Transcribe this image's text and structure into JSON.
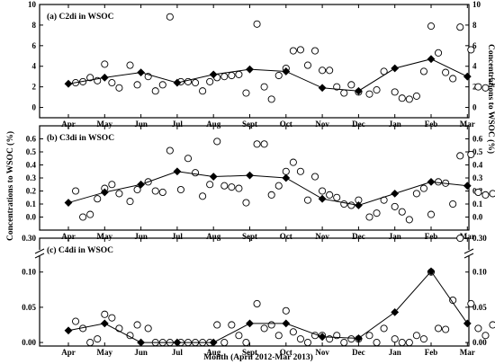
{
  "chart_data": {
    "type": "scatter",
    "xlabel": "Month (April 2012-Mar 2013)",
    "ylabel_left": "Concentrations to WSOC (%)",
    "ylabel_right": "Concentrations to WSOC (%)",
    "categories": [
      "Apr",
      "May",
      "Jun",
      "Jul",
      "Aug",
      "Sept",
      "Oct",
      "Nov",
      "Dec",
      "Jan",
      "Feb",
      "Mar"
    ],
    "panels": [
      {
        "title": "(a)  C2di in WSOC",
        "ylim": [
          -1,
          10
        ],
        "yticks": [
          0,
          2,
          4,
          6,
          8,
          10
        ],
        "monthly_mean": [
          2.3,
          2.9,
          3.4,
          2.4,
          3.2,
          3.7,
          3.5,
          1.9,
          1.6,
          3.8,
          4.7,
          3.0
        ],
        "samples": [
          [
            0.2,
            2.4
          ],
          [
            0.4,
            2.5
          ],
          [
            0.6,
            2.9
          ],
          [
            0.8,
            2.6
          ],
          [
            1.0,
            4.2
          ],
          [
            1.2,
            2.4
          ],
          [
            1.4,
            1.9
          ],
          [
            1.7,
            4.1
          ],
          [
            1.9,
            2.2
          ],
          [
            2.2,
            3.0
          ],
          [
            2.4,
            1.6
          ],
          [
            2.6,
            2.2
          ],
          [
            2.8,
            8.8
          ],
          [
            3.1,
            2.5
          ],
          [
            3.3,
            2.5
          ],
          [
            3.5,
            2.4
          ],
          [
            3.7,
            1.6
          ],
          [
            3.9,
            2.5
          ],
          [
            4.1,
            2.9
          ],
          [
            4.3,
            3.0
          ],
          [
            4.5,
            3.1
          ],
          [
            4.7,
            3.2
          ],
          [
            4.9,
            1.4
          ],
          [
            5.2,
            8.1
          ],
          [
            5.4,
            2.0
          ],
          [
            5.6,
            0.8
          ],
          [
            5.8,
            3.1
          ],
          [
            6.0,
            3.8
          ],
          [
            6.2,
            5.5
          ],
          [
            6.4,
            5.6
          ],
          [
            6.6,
            4.1
          ],
          [
            6.8,
            5.5
          ],
          [
            7.0,
            3.6
          ],
          [
            7.2,
            3.6
          ],
          [
            7.4,
            2.0
          ],
          [
            7.6,
            1.4
          ],
          [
            7.8,
            2.2
          ],
          [
            8.0,
            1.5
          ],
          [
            8.3,
            1.3
          ],
          [
            8.5,
            1.7
          ],
          [
            8.7,
            3.5
          ],
          [
            9.0,
            1.5
          ],
          [
            9.2,
            0.9
          ],
          [
            9.4,
            0.8
          ],
          [
            9.6,
            1.1
          ],
          [
            9.8,
            3.5
          ],
          [
            10.0,
            7.9
          ],
          [
            10.2,
            5.3
          ],
          [
            10.4,
            3.4
          ],
          [
            10.6,
            2.8
          ],
          [
            10.8,
            7.8
          ],
          [
            11.1,
            5.6
          ],
          [
            11.3,
            2.0
          ],
          [
            11.5,
            1.9
          ],
          [
            11.7,
            2.5
          ],
          [
            11.9,
            3.9
          ]
        ]
      },
      {
        "title": "(b)  C3di in WSOC",
        "ylim": [
          -0.1,
          0.7
        ],
        "yticks": [
          0.0,
          0.1,
          0.2,
          0.3,
          0.4,
          0.5,
          0.6
        ],
        "monthly_mean": [
          0.11,
          0.19,
          0.25,
          0.35,
          0.31,
          0.32,
          0.3,
          0.14,
          0.09,
          0.18,
          0.27,
          0.24
        ],
        "samples": [
          [
            0.2,
            0.2
          ],
          [
            0.4,
            0.0
          ],
          [
            0.6,
            0.02
          ],
          [
            0.8,
            0.14
          ],
          [
            1.0,
            0.22
          ],
          [
            1.2,
            0.25
          ],
          [
            1.4,
            0.18
          ],
          [
            1.7,
            0.12
          ],
          [
            1.9,
            0.21
          ],
          [
            2.2,
            0.27
          ],
          [
            2.4,
            0.2
          ],
          [
            2.6,
            0.19
          ],
          [
            2.8,
            0.51
          ],
          [
            3.1,
            0.21
          ],
          [
            3.3,
            0.45
          ],
          [
            3.5,
            0.34
          ],
          [
            3.7,
            0.16
          ],
          [
            3.9,
            0.25
          ],
          [
            4.1,
            0.58
          ],
          [
            4.3,
            0.24
          ],
          [
            4.5,
            0.23
          ],
          [
            4.7,
            0.22
          ],
          [
            4.9,
            0.11
          ],
          [
            5.2,
            0.56
          ],
          [
            5.4,
            0.56
          ],
          [
            5.6,
            0.17
          ],
          [
            5.8,
            0.24
          ],
          [
            6.0,
            0.35
          ],
          [
            6.2,
            0.42
          ],
          [
            6.4,
            0.35
          ],
          [
            6.6,
            0.13
          ],
          [
            6.8,
            0.31
          ],
          [
            7.0,
            0.2
          ],
          [
            7.2,
            0.17
          ],
          [
            7.4,
            0.15
          ],
          [
            7.6,
            0.1
          ],
          [
            7.8,
            0.09
          ],
          [
            8.0,
            0.13
          ],
          [
            8.3,
            0.0
          ],
          [
            8.5,
            0.03
          ],
          [
            8.7,
            0.13
          ],
          [
            9.0,
            0.08
          ],
          [
            9.2,
            0.04
          ],
          [
            9.4,
            -0.02
          ],
          [
            9.6,
            0.18
          ],
          [
            9.8,
            0.22
          ],
          [
            10.0,
            0.02
          ],
          [
            10.2,
            0.27
          ],
          [
            10.4,
            0.26
          ],
          [
            10.6,
            0.1
          ],
          [
            10.8,
            0.47
          ],
          [
            11.1,
            0.48
          ],
          [
            11.3,
            0.19
          ],
          [
            11.5,
            0.17
          ],
          [
            11.7,
            0.18
          ],
          [
            11.9,
            0.3
          ]
        ]
      },
      {
        "title": "(c)  C4di in WSOC",
        "ylim": [
          -0.005,
          0.3
        ],
        "yticks": [
          0.0,
          0.05,
          0.1,
          0.3
        ],
        "axis_break": [
          0.12,
          0.28
        ],
        "monthly_mean": [
          0.017,
          0.027,
          0.0,
          0.0,
          0.0,
          0.027,
          0.027,
          0.008,
          0.006,
          0.043,
          0.101,
          0.027
        ],
        "samples": [
          [
            0.2,
            0.03
          ],
          [
            0.4,
            0.02
          ],
          [
            0.6,
            0.0
          ],
          [
            0.8,
            0.005
          ],
          [
            1.0,
            0.04
          ],
          [
            1.2,
            0.035
          ],
          [
            1.4,
            0.02
          ],
          [
            1.7,
            0.01
          ],
          [
            1.9,
            0.025
          ],
          [
            2.2,
            0.02
          ],
          [
            2.4,
            0.0
          ],
          [
            2.6,
            0.0
          ],
          [
            2.8,
            0.0
          ],
          [
            3.1,
            0.0
          ],
          [
            3.3,
            0.0
          ],
          [
            3.5,
            0.0
          ],
          [
            3.7,
            0.0
          ],
          [
            3.9,
            0.0
          ],
          [
            4.1,
            0.025
          ],
          [
            4.3,
            0.0
          ],
          [
            4.5,
            0.025
          ],
          [
            4.7,
            0.01
          ],
          [
            4.9,
            0.0
          ],
          [
            5.2,
            0.055
          ],
          [
            5.4,
            0.02
          ],
          [
            5.6,
            0.025
          ],
          [
            5.8,
            0.01
          ],
          [
            6.0,
            0.045
          ],
          [
            6.2,
            0.015
          ],
          [
            6.4,
            0.005
          ],
          [
            6.6,
            0.0
          ],
          [
            6.8,
            0.01
          ],
          [
            7.0,
            0.01
          ],
          [
            7.2,
            0.005
          ],
          [
            7.4,
            0.01
          ],
          [
            7.6,
            0.0
          ],
          [
            7.8,
            0.005
          ],
          [
            8.0,
            0.005
          ],
          [
            8.3,
            0.01
          ],
          [
            8.5,
            0.0
          ],
          [
            8.7,
            0.02
          ],
          [
            9.0,
            0.005
          ],
          [
            9.2,
            0.0
          ],
          [
            9.4,
            0.0
          ],
          [
            9.6,
            0.01
          ],
          [
            9.8,
            0.005
          ],
          [
            10.0,
            0.1
          ],
          [
            10.2,
            0.02
          ],
          [
            10.4,
            0.155
          ],
          [
            10.6,
            0.06
          ],
          [
            10.8,
            0.3
          ],
          [
            11.1,
            0.055
          ],
          [
            11.3,
            0.02
          ],
          [
            11.5,
            0.01
          ],
          [
            11.7,
            0.025
          ],
          [
            11.9,
            0.03
          ]
        ]
      }
    ],
    "colors": {
      "mean_marker": "#000000",
      "sample_marker": "#ffffff",
      "axis": "#000000"
    }
  }
}
